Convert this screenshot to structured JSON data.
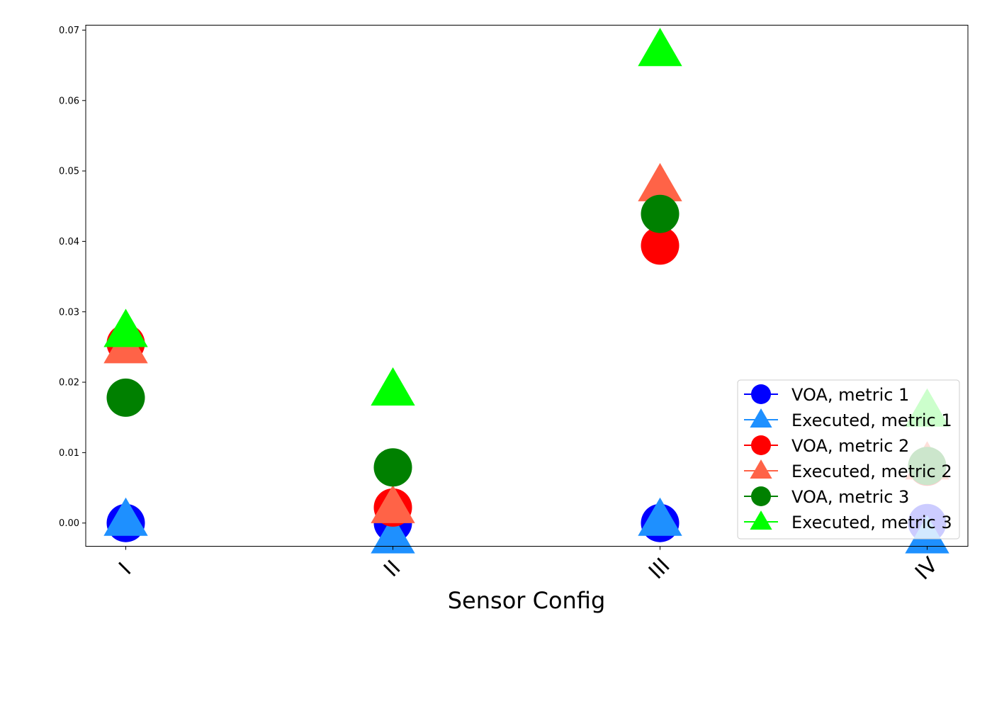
{
  "chart_data": {
    "type": "scatter",
    "title": "",
    "xlabel": "Sensor Config",
    "ylabel": "",
    "categories": [
      "I",
      "II",
      "III",
      "IV"
    ],
    "ylim": [
      -0.0033,
      0.0707
    ],
    "yticks": [
      0.0,
      0.01,
      0.02,
      0.03,
      0.04,
      0.05,
      0.06,
      0.07
    ],
    "ytick_labels": [
      "0.00",
      "0.01",
      "0.02",
      "0.03",
      "0.04",
      "0.05",
      "0.06",
      "0.07"
    ],
    "grid": false,
    "legend_position": "lower-right",
    "series": [
      {
        "name": "VOA, metric 1",
        "marker": "circle",
        "color": "#0000ff",
        "values": [
          0.0,
          0.0,
          0.0,
          0.0
        ]
      },
      {
        "name": "Executed, metric 1",
        "marker": "triangle",
        "color": "#1e90ff",
        "values": [
          0.0,
          -0.0025,
          0.0,
          -0.0025
        ]
      },
      {
        "name": "VOA, metric 2",
        "marker": "circle",
        "color": "#ff0000",
        "values": [
          0.0255,
          0.0022,
          0.0394,
          0.008
        ]
      },
      {
        "name": "Executed, metric 2",
        "marker": "triangle",
        "color": "#ff6347",
        "values": [
          0.0245,
          0.0018,
          0.0475,
          0.008
        ]
      },
      {
        "name": "VOA, metric 3",
        "marker": "circle",
        "color": "#008000",
        "values": [
          0.0178,
          0.0079,
          0.0439,
          0.0081
        ]
      },
      {
        "name": "Executed, metric 3",
        "marker": "triangle",
        "color": "#00ff00",
        "values": [
          0.0268,
          0.0185,
          0.0667,
          0.0155
        ]
      }
    ]
  }
}
